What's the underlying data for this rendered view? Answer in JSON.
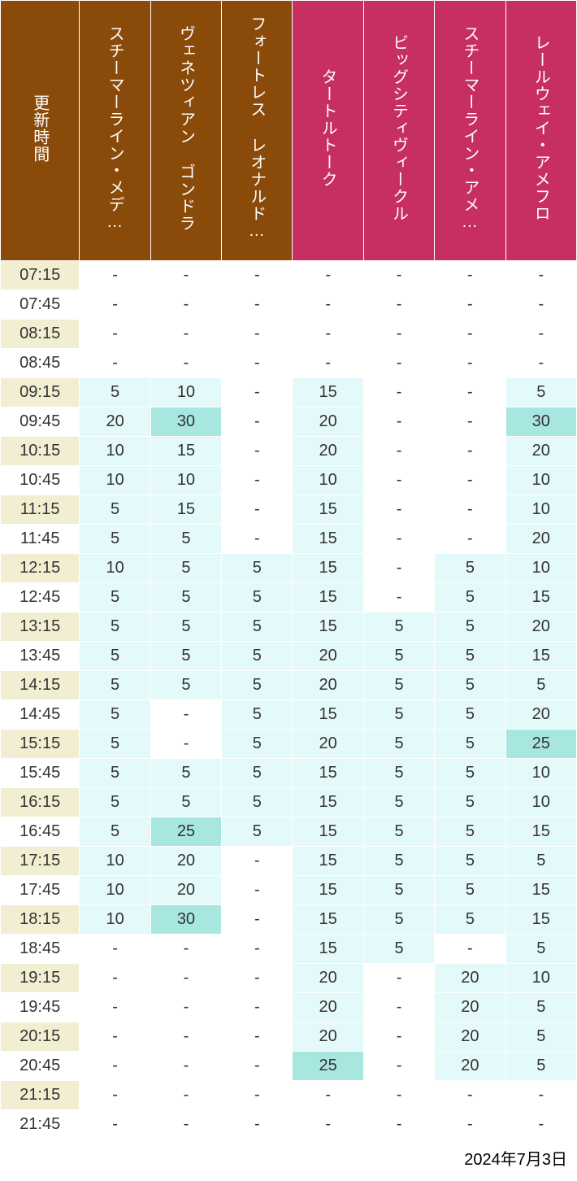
{
  "header": {
    "time_label": "更新時間",
    "time_bg": "#8a4a0a",
    "attractions": [
      {
        "label": "スチーマーライン・メデ…",
        "bg": "#8a4a0a"
      },
      {
        "label": "ヴェネツィアン ゴンドラ",
        "bg": "#8a4a0a"
      },
      {
        "label": "フォートレス レオナルド…",
        "bg": "#8a4a0a"
      },
      {
        "label": "タートルトーク",
        "bg": "#c72f62"
      },
      {
        "label": "ビッグシティヴィークル",
        "bg": "#c72f62"
      },
      {
        "label": "スチーマーライン・アメ…",
        "bg": "#c72f62"
      },
      {
        "label": "レールウェイ・アメフロ",
        "bg": "#c72f62"
      }
    ]
  },
  "colors": {
    "time_odd": "#f2eed2",
    "time_even": "#ffffff",
    "cell_empty": "#ffffff",
    "cell_light": "#e4f9f9",
    "cell_mid": "#a8e6e0",
    "text": "#333333"
  },
  "thresholds": {
    "mid_min": 25
  },
  "times": [
    "07:15",
    "07:45",
    "08:15",
    "08:45",
    "09:15",
    "09:45",
    "10:15",
    "10:45",
    "11:15",
    "11:45",
    "12:15",
    "12:45",
    "13:15",
    "13:45",
    "14:15",
    "14:45",
    "15:15",
    "15:45",
    "16:15",
    "16:45",
    "17:15",
    "17:45",
    "18:15",
    "18:45",
    "19:15",
    "19:45",
    "20:15",
    "20:45",
    "21:15",
    "21:45"
  ],
  "data": [
    [
      "-",
      "-",
      "-",
      "-",
      "-",
      "-",
      "-"
    ],
    [
      "-",
      "-",
      "-",
      "-",
      "-",
      "-",
      "-"
    ],
    [
      "-",
      "-",
      "-",
      "-",
      "-",
      "-",
      "-"
    ],
    [
      "-",
      "-",
      "-",
      "-",
      "-",
      "-",
      "-"
    ],
    [
      "5",
      "10",
      "-",
      "15",
      "-",
      "-",
      "5"
    ],
    [
      "20",
      "30",
      "-",
      "20",
      "-",
      "-",
      "30"
    ],
    [
      "10",
      "15",
      "-",
      "20",
      "-",
      "-",
      "20"
    ],
    [
      "10",
      "10",
      "-",
      "10",
      "-",
      "-",
      "10"
    ],
    [
      "5",
      "15",
      "-",
      "15",
      "-",
      "-",
      "10"
    ],
    [
      "5",
      "5",
      "-",
      "15",
      "-",
      "-",
      "20"
    ],
    [
      "10",
      "5",
      "5",
      "15",
      "-",
      "5",
      "10"
    ],
    [
      "5",
      "5",
      "5",
      "15",
      "-",
      "5",
      "15"
    ],
    [
      "5",
      "5",
      "5",
      "15",
      "5",
      "5",
      "20"
    ],
    [
      "5",
      "5",
      "5",
      "20",
      "5",
      "5",
      "15"
    ],
    [
      "5",
      "5",
      "5",
      "20",
      "5",
      "5",
      "5"
    ],
    [
      "5",
      "-",
      "5",
      "15",
      "5",
      "5",
      "20"
    ],
    [
      "5",
      "-",
      "5",
      "20",
      "5",
      "5",
      "25"
    ],
    [
      "5",
      "5",
      "5",
      "15",
      "5",
      "5",
      "10"
    ],
    [
      "5",
      "5",
      "5",
      "15",
      "5",
      "5",
      "10"
    ],
    [
      "5",
      "25",
      "5",
      "15",
      "5",
      "5",
      "15"
    ],
    [
      "10",
      "20",
      "-",
      "15",
      "5",
      "5",
      "5"
    ],
    [
      "10",
      "20",
      "-",
      "15",
      "5",
      "5",
      "15"
    ],
    [
      "10",
      "30",
      "-",
      "15",
      "5",
      "5",
      "15"
    ],
    [
      "-",
      "-",
      "-",
      "15",
      "5",
      "-",
      "5"
    ],
    [
      "-",
      "-",
      "-",
      "20",
      "-",
      "20",
      "10"
    ],
    [
      "-",
      "-",
      "-",
      "20",
      "-",
      "20",
      "5"
    ],
    [
      "-",
      "-",
      "-",
      "20",
      "-",
      "20",
      "5"
    ],
    [
      "-",
      "-",
      "-",
      "25",
      "-",
      "20",
      "5"
    ],
    [
      "-",
      "-",
      "-",
      "-",
      "-",
      "-",
      "-"
    ],
    [
      "-",
      "-",
      "-",
      "-",
      "-",
      "-",
      "-"
    ]
  ],
  "footer": {
    "date": "2024年7月3日"
  }
}
